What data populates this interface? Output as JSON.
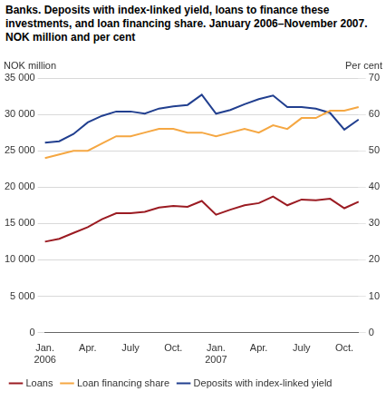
{
  "chart_data": {
    "type": "line",
    "title": "Banks. Deposits with index-linked yield, loans to finance these investments, and loan financing share. January 2006–November 2007. NOK million and per cent",
    "y_label": "NOK million",
    "y2_label": "Per cent",
    "categories": [
      "Jan.\n2006",
      null,
      null,
      "Apr.",
      null,
      null,
      "July",
      null,
      null,
      "Oct.",
      null,
      null,
      "Jan.\n2007",
      null,
      null,
      "Apr.",
      null,
      null,
      "July",
      null,
      null,
      "Oct.",
      null
    ],
    "series": [
      {
        "name": "Loans",
        "color": "#9b1b22",
        "values": [
          12500,
          12900,
          13700,
          14500,
          15600,
          16400,
          16400,
          16600,
          17200,
          17400,
          17300,
          18100,
          16200,
          16900,
          17500,
          17800,
          18700,
          17500,
          18300,
          18200,
          18400,
          17100,
          18000
        ]
      },
      {
        "name": "Loan financing share",
        "color": "#f5a742",
        "axis": "y2",
        "values": [
          48,
          49,
          50,
          50,
          52,
          54,
          54,
          55,
          56,
          56,
          55,
          55,
          54,
          55,
          56,
          55,
          57,
          56,
          59,
          59,
          61,
          61,
          62
        ]
      },
      {
        "name": "Deposits with index-linked yield",
        "color": "#213f8f",
        "values": [
          26100,
          26300,
          27300,
          28900,
          29800,
          30400,
          30400,
          30100,
          30800,
          31100,
          31300,
          32700,
          30100,
          30600,
          31400,
          32100,
          32600,
          31000,
          31000,
          30800,
          30200,
          27900,
          29300
        ]
      }
    ],
    "ylim": [
      0,
      35000
    ],
    "yticks": [
      0,
      {
        "value": 5000,
        "label": "5 000"
      },
      {
        "value": 10000,
        "label": "10 000"
      },
      {
        "value": 15000,
        "label": "15 000"
      },
      {
        "value": 20000,
        "label": "20 000"
      },
      {
        "value": 25000,
        "label": "25 000"
      },
      {
        "value": 30000,
        "label": "30 000"
      },
      {
        "value": 35000,
        "label": "35 000"
      }
    ],
    "y2lim": [
      0,
      70
    ],
    "y2ticks": [
      0,
      10,
      20,
      30,
      40,
      50,
      60,
      70
    ],
    "grid": true,
    "legend": "bottom"
  }
}
